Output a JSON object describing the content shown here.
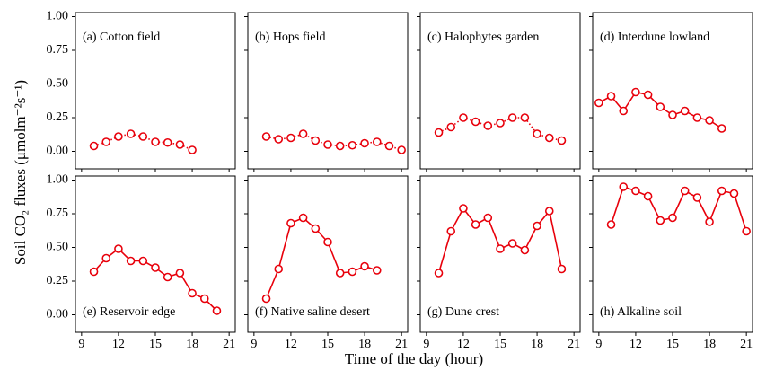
{
  "xlabel": "Time of the day (hour)",
  "ylabel": "Soil CO₂ fluxes (μmolm⁻²s⁻¹)",
  "chart_data": [
    {
      "type": "line",
      "title": "(a) Cotton field",
      "color": "#e8000b",
      "line_style": "dotted",
      "x": [
        10,
        11,
        12,
        13,
        14,
        15,
        16,
        17,
        18
      ],
      "values": [
        0.04,
        0.07,
        0.11,
        0.13,
        0.11,
        0.07,
        0.065,
        0.05,
        0.01
      ],
      "xlim": [
        8.5,
        21.5
      ],
      "ylim": [
        -0.13,
        1.03
      ],
      "xticks": [
        9,
        12,
        15,
        18,
        21
      ],
      "yticks": [
        {
          "value": 0,
          "label": "0.00"
        },
        {
          "value": 0.25,
          "label": "0.25"
        },
        {
          "value": 0.5,
          "label": "0.50"
        },
        {
          "value": 0.75,
          "label": "0.75"
        },
        {
          "value": 1,
          "label": "1.00"
        }
      ]
    },
    {
      "type": "line",
      "title": "(b) Hops field",
      "color": "#e8000b",
      "line_style": "dotted",
      "x": [
        10,
        11,
        12,
        13,
        14,
        15,
        16,
        17,
        18,
        19,
        20,
        21
      ],
      "values": [
        0.11,
        0.09,
        0.1,
        0.13,
        0.08,
        0.05,
        0.04,
        0.045,
        0.06,
        0.07,
        0.04,
        0.01
      ],
      "xlim": [
        8.5,
        21.5
      ],
      "ylim": [
        -0.13,
        1.03
      ],
      "xticks": [
        9,
        12,
        15,
        18,
        21
      ],
      "yticks": [
        {
          "value": 0,
          "label": "0.00"
        },
        {
          "value": 0.25,
          "label": "0.25"
        },
        {
          "value": 0.5,
          "label": "0.50"
        },
        {
          "value": 0.75,
          "label": "0.75"
        },
        {
          "value": 1,
          "label": "1.00"
        }
      ]
    },
    {
      "type": "line",
      "title": "(c) Halophytes garden",
      "color": "#e8000b",
      "line_style": "dotted",
      "x": [
        10,
        11,
        12,
        13,
        14,
        15,
        16,
        17,
        18,
        19,
        20
      ],
      "values": [
        0.14,
        0.18,
        0.25,
        0.22,
        0.19,
        0.21,
        0.25,
        0.25,
        0.13,
        0.1,
        0.08
      ],
      "xlim": [
        8.5,
        21.5
      ],
      "ylim": [
        -0.13,
        1.03
      ],
      "xticks": [
        9,
        12,
        15,
        18,
        21
      ],
      "yticks": [
        {
          "value": 0,
          "label": "0.00"
        },
        {
          "value": 0.25,
          "label": "0.25"
        },
        {
          "value": 0.5,
          "label": "0.50"
        },
        {
          "value": 0.75,
          "label": "0.75"
        },
        {
          "value": 1,
          "label": "1.00"
        }
      ]
    },
    {
      "type": "line",
      "title": "(d) Interdune lowland",
      "color": "#e8000b",
      "line_style": "solid",
      "x": [
        9,
        10,
        11,
        12,
        13,
        14,
        15,
        16,
        17,
        18,
        19
      ],
      "values": [
        0.36,
        0.41,
        0.3,
        0.44,
        0.42,
        0.33,
        0.27,
        0.3,
        0.25,
        0.23,
        0.17
      ],
      "xlim": [
        8.5,
        21.5
      ],
      "ylim": [
        -0.13,
        1.03
      ],
      "xticks": [
        9,
        12,
        15,
        18,
        21
      ],
      "yticks": [
        {
          "value": 0,
          "label": "0.00"
        },
        {
          "value": 0.25,
          "label": "0.25"
        },
        {
          "value": 0.5,
          "label": "0.50"
        },
        {
          "value": 0.75,
          "label": "0.75"
        },
        {
          "value": 1,
          "label": "1.00"
        }
      ]
    },
    {
      "type": "line",
      "title": "(e) Reservoir edge",
      "color": "#e8000b",
      "line_style": "solid",
      "x": [
        10,
        11,
        12,
        13,
        14,
        15,
        16,
        17,
        18,
        19,
        20
      ],
      "values": [
        0.32,
        0.42,
        0.49,
        0.4,
        0.4,
        0.35,
        0.28,
        0.31,
        0.16,
        0.12,
        0.03
      ],
      "xlim": [
        8.5,
        21.5
      ],
      "ylim": [
        -0.13,
        1.03
      ],
      "xticks": [
        9,
        12,
        15,
        18,
        21
      ],
      "yticks": [
        {
          "value": 0,
          "label": "0.00"
        },
        {
          "value": 0.25,
          "label": "0.25"
        },
        {
          "value": 0.5,
          "label": "0.50"
        },
        {
          "value": 0.75,
          "label": "0.75"
        },
        {
          "value": 1,
          "label": "1.00"
        }
      ]
    },
    {
      "type": "line",
      "title": "(f) Native saline desert",
      "color": "#e8000b",
      "line_style": "solid",
      "x": [
        10,
        11,
        12,
        13,
        14,
        15,
        16,
        17,
        18,
        19
      ],
      "values": [
        0.12,
        0.34,
        0.68,
        0.72,
        0.64,
        0.54,
        0.31,
        0.32,
        0.36,
        0.33
      ],
      "xlim": [
        8.5,
        21.5
      ],
      "ylim": [
        -0.13,
        1.03
      ],
      "xticks": [
        9,
        12,
        15,
        18,
        21
      ],
      "yticks": [
        {
          "value": 0,
          "label": "0.00"
        },
        {
          "value": 0.25,
          "label": "0.25"
        },
        {
          "value": 0.5,
          "label": "0.50"
        },
        {
          "value": 0.75,
          "label": "0.75"
        },
        {
          "value": 1,
          "label": "1.00"
        }
      ]
    },
    {
      "type": "line",
      "title": "(g) Dune crest",
      "color": "#e8000b",
      "line_style": "solid",
      "x": [
        10,
        11,
        12,
        13,
        14,
        15,
        16,
        17,
        18,
        19,
        20
      ],
      "values": [
        0.31,
        0.62,
        0.79,
        0.67,
        0.72,
        0.49,
        0.53,
        0.48,
        0.66,
        0.77,
        0.34
      ],
      "xlim": [
        8.5,
        21.5
      ],
      "ylim": [
        -0.13,
        1.03
      ],
      "xticks": [
        9,
        12,
        15,
        18,
        21
      ],
      "yticks": [
        {
          "value": 0,
          "label": "0.00"
        },
        {
          "value": 0.25,
          "label": "0.25"
        },
        {
          "value": 0.5,
          "label": "0.50"
        },
        {
          "value": 0.75,
          "label": "0.75"
        },
        {
          "value": 1,
          "label": "1.00"
        }
      ]
    },
    {
      "type": "line",
      "title": "(h) Alkaline soil",
      "color": "#e8000b",
      "line_style": "solid",
      "x": [
        10,
        11,
        12,
        13,
        14,
        15,
        16,
        17,
        18,
        19,
        20,
        21
      ],
      "values": [
        0.67,
        0.95,
        0.92,
        0.88,
        0.7,
        0.72,
        0.92,
        0.87,
        0.69,
        0.92,
        0.9,
        0.62
      ],
      "xlim": [
        8.5,
        21.5
      ],
      "ylim": [
        -0.13,
        1.03
      ],
      "xticks": [
        9,
        12,
        15,
        18,
        21
      ],
      "yticks": [
        {
          "value": 0,
          "label": "0.00"
        },
        {
          "value": 0.25,
          "label": "0.25"
        },
        {
          "value": 0.5,
          "label": "0.50"
        },
        {
          "value": 0.75,
          "label": "0.75"
        },
        {
          "value": 1,
          "label": "1.00"
        }
      ]
    }
  ]
}
